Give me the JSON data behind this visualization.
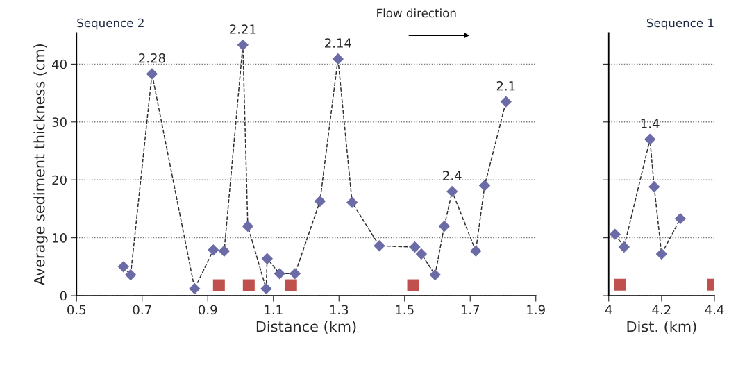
{
  "chart_data": [
    {
      "type": "line",
      "title": "Sequence 2",
      "xlabel": "Distance (km)",
      "ylabel": "Average sediment thickness (cm)",
      "xlim": [
        0.5,
        1.9
      ],
      "xticks": [
        0.5,
        0.7,
        0.9,
        1.1,
        1.3,
        1.5,
        1.7,
        1.9
      ],
      "ylim": [
        0,
        45.4
      ],
      "yticks": [
        0,
        10,
        20,
        30,
        40
      ],
      "grid": "y",
      "legend": false,
      "series": [
        {
          "type": "line",
          "color": "#6b6ba8",
          "marker": "diamond",
          "line_style": "dashed",
          "x": [
            0.643,
            0.665,
            0.73,
            0.86,
            0.917,
            0.95,
            1.007,
            1.022,
            1.078,
            1.081,
            1.119,
            1.166,
            1.242,
            1.297,
            1.34,
            1.423,
            1.531,
            1.551,
            1.593,
            1.621,
            1.645,
            1.717,
            1.744,
            1.809
          ],
          "values": [
            5.0,
            3.6,
            38.3,
            1.2,
            7.9,
            7.7,
            43.3,
            12.0,
            1.2,
            6.4,
            3.8,
            3.8,
            16.3,
            40.9,
            16.1,
            8.6,
            8.4,
            7.2,
            3.6,
            12.0,
            18.0,
            7.7,
            19.0,
            33.5
          ]
        },
        {
          "type": "scatter",
          "color": "#c0504d",
          "marker": "square",
          "x": [
            0.934,
            1.025,
            1.154,
            1.526
          ],
          "values": [
            1.8,
            1.8,
            1.8,
            1.8
          ]
        }
      ],
      "annotations": [
        {
          "text": "2.28",
          "x": 0.73,
          "y": 38.3
        },
        {
          "text": "2.21",
          "x": 1.007,
          "y": 43.3
        },
        {
          "text": "2.14",
          "x": 1.297,
          "y": 40.9
        },
        {
          "text": "2.4",
          "x": 1.645,
          "y": 18.0
        },
        {
          "text": "2.1",
          "x": 1.809,
          "y": 33.5
        },
        "Flow direction"
      ]
    },
    {
      "type": "line",
      "title": "Sequence 1",
      "xlabel": "Dist. (km)",
      "xlim": [
        4,
        4.4
      ],
      "xticks": [
        4,
        4.2,
        4.4
      ],
      "ylim": [
        0,
        45.4
      ],
      "yticks": [
        0,
        10,
        20,
        30,
        40
      ],
      "grid": "y",
      "legend": false,
      "tick_labels": "x",
      "series": [
        {
          "type": "line",
          "color": "#6b6ba8",
          "marker": "diamond",
          "line_style": "dashed",
          "x": [
            4.024,
            4.058,
            4.156,
            4.172,
            4.2,
            4.271
          ],
          "values": [
            10.6,
            8.4,
            27.0,
            18.8,
            7.2,
            13.3
          ]
        },
        {
          "type": "scatter",
          "color": "#c0504d",
          "marker": "square",
          "x": [
            4.043,
            4.394
          ],
          "values": [
            1.9,
            1.9
          ]
        }
      ],
      "annotations": [
        {
          "text": "1.4",
          "x": 4.156,
          "y": 27.0
        }
      ]
    }
  ]
}
